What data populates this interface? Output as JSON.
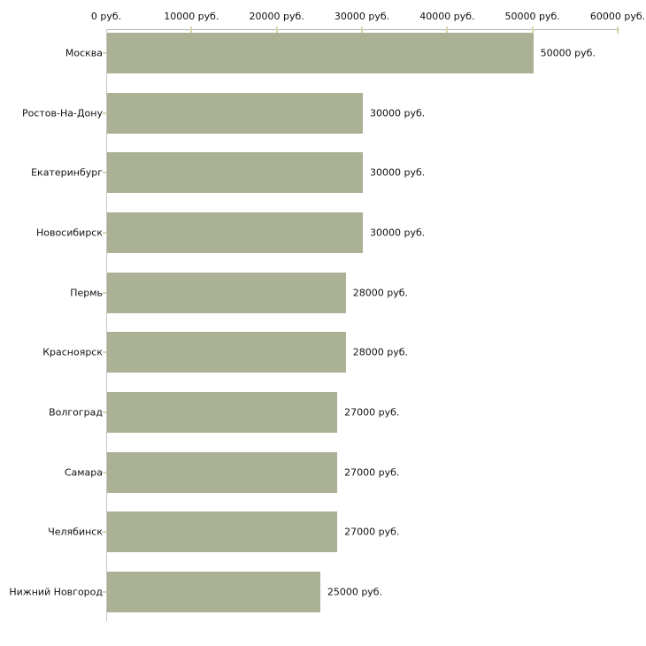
{
  "chart_data": {
    "type": "bar",
    "orientation": "horizontal",
    "title": "",
    "xlabel": "",
    "ylabel": "",
    "unit_suffix": " руб.",
    "categories": [
      "Москва",
      "Ростов-На-Дону",
      "Екатеринбург",
      "Новосибирск",
      "Пермь",
      "Красноярск",
      "Волгоград",
      "Самара",
      "Челябинск",
      "Нижний Новгород"
    ],
    "values": [
      50000,
      30000,
      30000,
      30000,
      28000,
      28000,
      27000,
      27000,
      27000,
      25000
    ],
    "value_labels": [
      "50000 руб.",
      "30000 руб.",
      "30000 руб.",
      "30000 руб.",
      "28000 руб.",
      "28000 руб.",
      "27000 руб.",
      "27000 руб.",
      "27000 руб.",
      "25000 руб."
    ],
    "x_axis": {
      "position": "top",
      "ticks": [
        0,
        10000,
        20000,
        30000,
        40000,
        50000,
        60000
      ],
      "tick_labels": [
        "0 руб.",
        "10000 руб.",
        "20000 руб.",
        "30000 руб.",
        "40000 руб.",
        "50000 руб.",
        "60000 руб."
      ],
      "range": [
        0,
        60000
      ]
    },
    "grid": false,
    "legend": false,
    "colors": {
      "bar_fill": "#abb194",
      "axis_line": "#b3b3b3",
      "baseline": "#c6c6c6",
      "tick_mark": "#d9d5ae",
      "text": "#111111",
      "background": "#ffffff"
    }
  }
}
